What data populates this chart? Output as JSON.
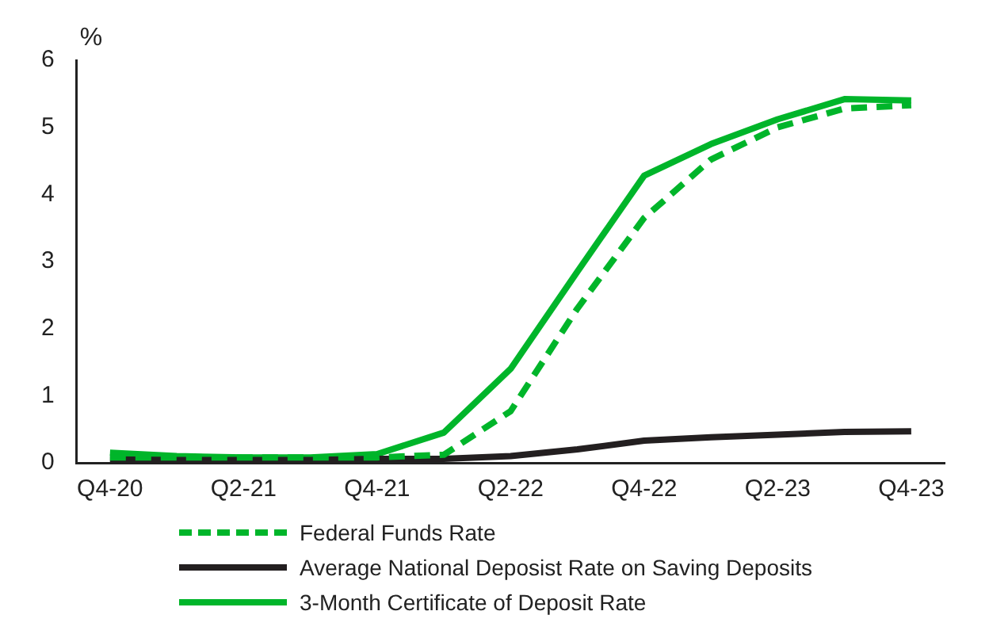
{
  "chart_data": {
    "type": "line",
    "ylabel": "%",
    "categories": [
      "Q4-20",
      null,
      "Q2-21",
      null,
      "Q4-21",
      null,
      "Q2-22",
      null,
      "Q4-22",
      null,
      "Q2-23",
      null,
      "Q4-23"
    ],
    "series": [
      {
        "name": "Federal Funds Rate",
        "color": "#00b52a",
        "line_style": "dashed",
        "values": [
          0.08,
          0.08,
          0.08,
          0.08,
          0.08,
          0.12,
          0.77,
          2.3,
          3.65,
          4.52,
          5.0,
          5.28,
          5.33
        ]
      },
      {
        "name": "Average National Deposist Rate on Saving Deposits",
        "color": "#231f20",
        "line_style": "solid",
        "values": [
          0.05,
          0.04,
          0.04,
          0.04,
          0.06,
          0.06,
          0.1,
          0.2,
          0.33,
          0.38,
          0.42,
          0.46,
          0.47
        ]
      },
      {
        "name": "3-Month Certificate of Deposit Rate",
        "color": "#00b52a",
        "line_style": "solid",
        "values": [
          0.15,
          0.1,
          0.08,
          0.08,
          0.13,
          0.45,
          1.4,
          2.85,
          4.28,
          4.75,
          5.12,
          5.42,
          5.4
        ]
      }
    ],
    "ylim": [
      0,
      6
    ],
    "yticks": [
      0,
      1,
      2,
      3,
      4,
      5,
      6
    ],
    "grid": false,
    "legend": "bottom",
    "marker": "none"
  }
}
